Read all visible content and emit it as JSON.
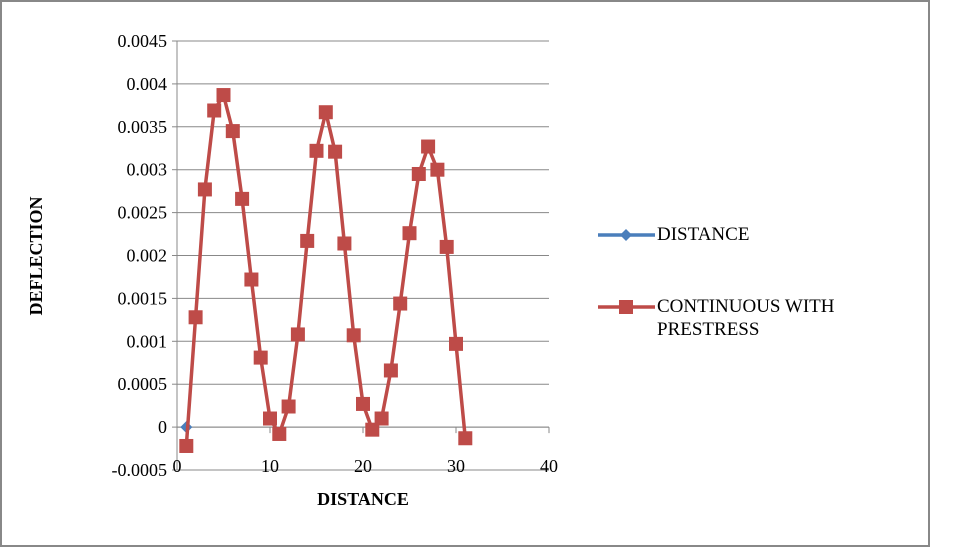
{
  "chart_data": {
    "type": "scatter",
    "x_label": "DISTANCE",
    "y_label": "DEFLECTION",
    "xlim": [
      0,
      40
    ],
    "xticks": [
      0,
      10,
      20,
      30,
      40
    ],
    "ylim": [
      -0.0005,
      0.0045
    ],
    "yticks": [
      -0.0005,
      0,
      0.0005,
      0.001,
      0.0015,
      0.002,
      0.0025,
      0.003,
      0.0035,
      0.004,
      0.0045
    ],
    "grid": true,
    "legend": "right",
    "series": [
      {
        "name": "DISTANCE",
        "color": "#4a7ebb",
        "marker": "diamond",
        "x": [
          1
        ],
        "values": [
          0
        ]
      },
      {
        "name": "CONTINUOUS WITH PRESTRESS",
        "color": "#be4b48",
        "marker": "square",
        "x": [
          1,
          2,
          3,
          4,
          5,
          6,
          7,
          8,
          9,
          10,
          11,
          12,
          13,
          14,
          15,
          16,
          17,
          18,
          19,
          20,
          21,
          22,
          23,
          24,
          25,
          26,
          27,
          28,
          29,
          30,
          31
        ],
        "values": [
          -0.00022,
          0.00128,
          0.00277,
          0.00369,
          0.00387,
          0.00345,
          0.00266,
          0.00172,
          0.00081,
          0.0001,
          -8e-05,
          0.00024,
          0.00108,
          0.00217,
          0.00322,
          0.00367,
          0.00321,
          0.00214,
          0.00107,
          0.00027,
          -3e-05,
          0.0001,
          0.00066,
          0.00144,
          0.00226,
          0.00295,
          0.00327,
          0.003,
          0.0021,
          0.00097,
          -0.00013
        ]
      }
    ]
  }
}
